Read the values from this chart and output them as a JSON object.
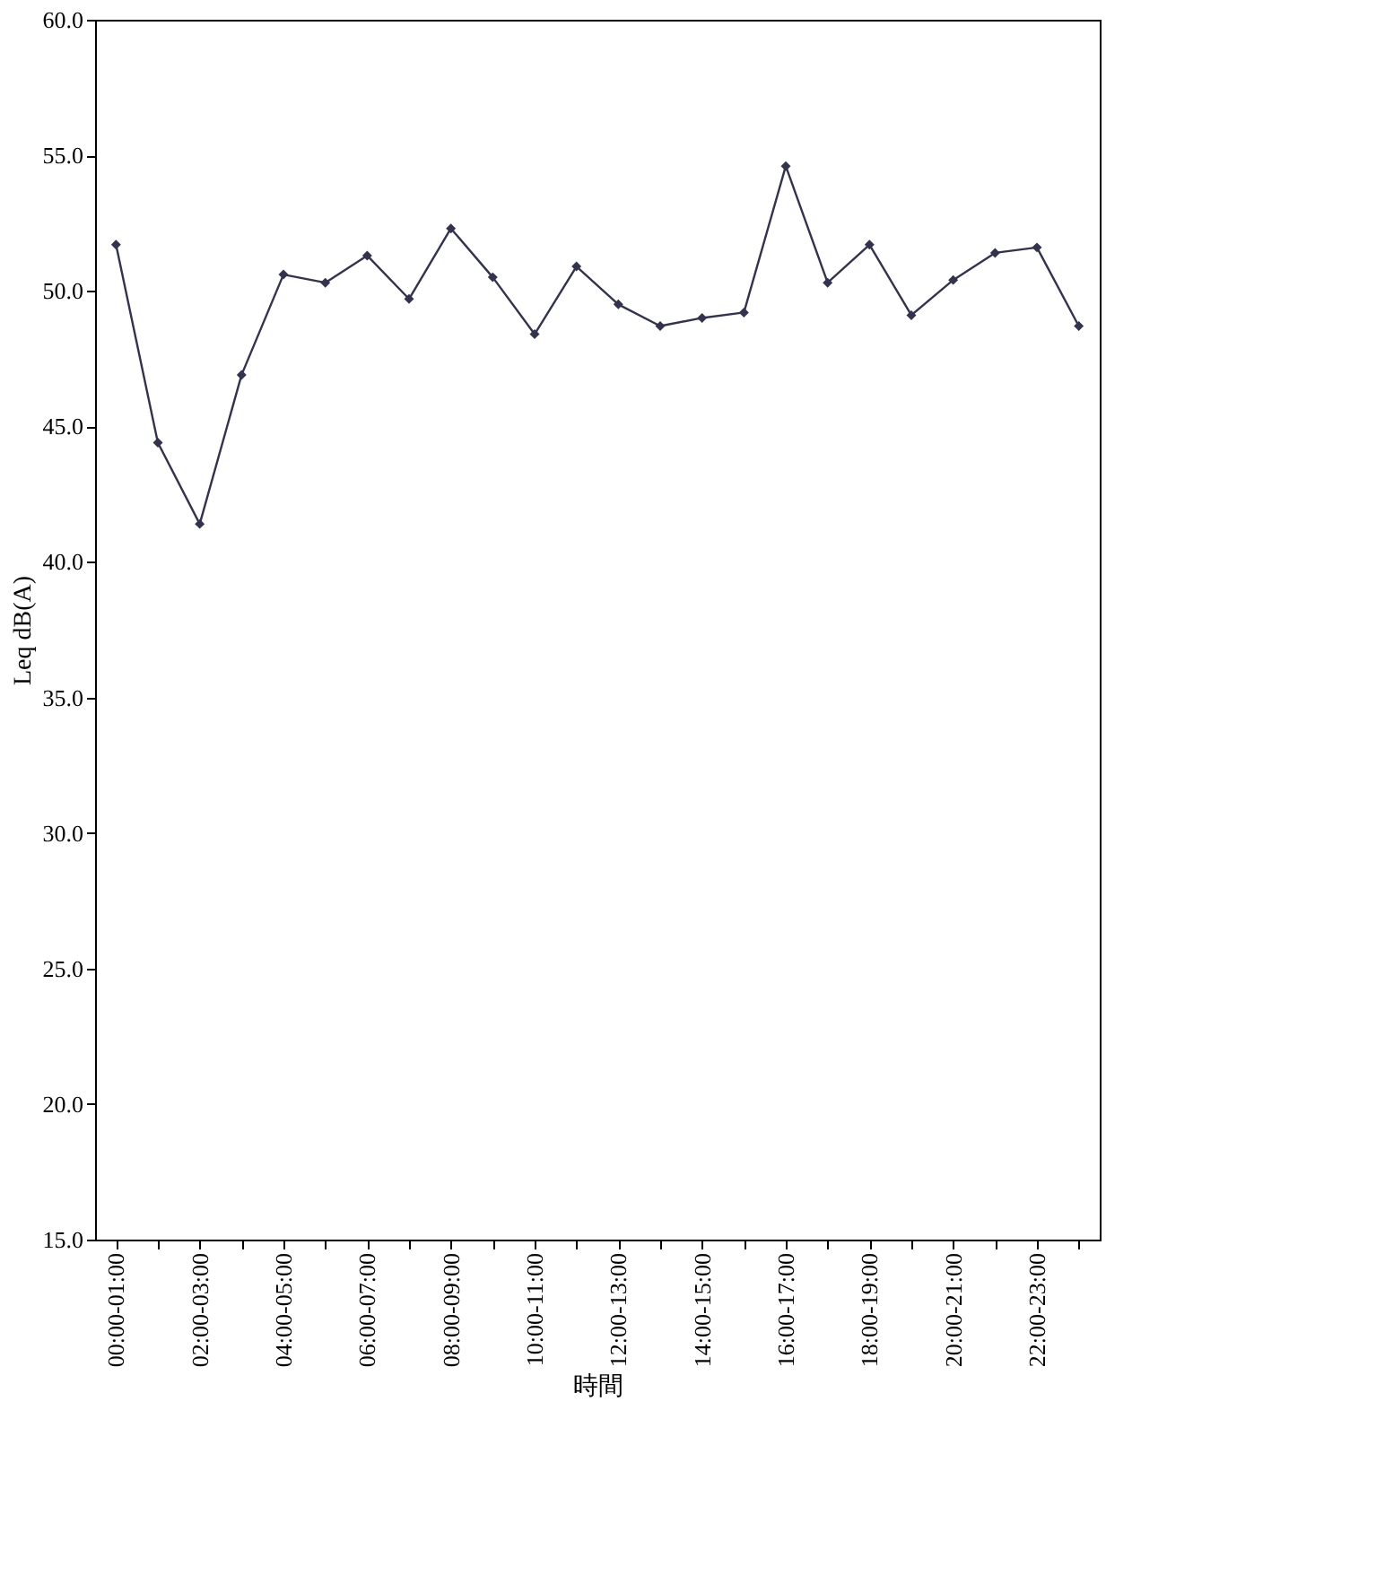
{
  "chart_data": {
    "type": "line",
    "xlabel": "時間",
    "ylabel": "Leq dB(A)",
    "categories": [
      "00:00-01:00",
      null,
      "02:00-03:00",
      null,
      "04:00-05:00",
      null,
      "06:00-07:00",
      null,
      "08:00-09:00",
      null,
      "10:00-11:00",
      null,
      "12:00-13:00",
      null,
      "14:00-15:00",
      null,
      "16:00-17:00",
      null,
      "18:00-19:00",
      null,
      "20:00-21:00",
      null,
      "22:00-23:00",
      null
    ],
    "series": [
      {
        "color": "#33334d",
        "values": [
          51.7,
          44.4,
          41.4,
          46.9,
          50.6,
          50.3,
          51.3,
          49.7,
          52.3,
          50.5,
          48.4,
          50.9,
          49.5,
          48.7,
          49.0,
          49.2,
          54.6,
          50.3,
          51.7,
          49.1,
          50.4,
          51.4,
          51.6,
          48.7
        ]
      }
    ],
    "ylim": [
      15,
      60
    ],
    "yticks": [
      {
        "value": 15,
        "label": "15.0"
      },
      {
        "value": 20,
        "label": "20.0"
      },
      {
        "value": 25,
        "label": "25.0"
      },
      {
        "value": 30,
        "label": "30.0"
      },
      {
        "value": 35,
        "label": "35.0"
      },
      {
        "value": 40,
        "label": "40.0"
      },
      {
        "value": 45,
        "label": "45.0"
      },
      {
        "value": 50,
        "label": "50.0"
      },
      {
        "value": 55,
        "label": "55.0"
      },
      {
        "value": 60,
        "label": "60.0"
      }
    ],
    "marker": "diamond",
    "line_style": "solid",
    "grid": false
  }
}
